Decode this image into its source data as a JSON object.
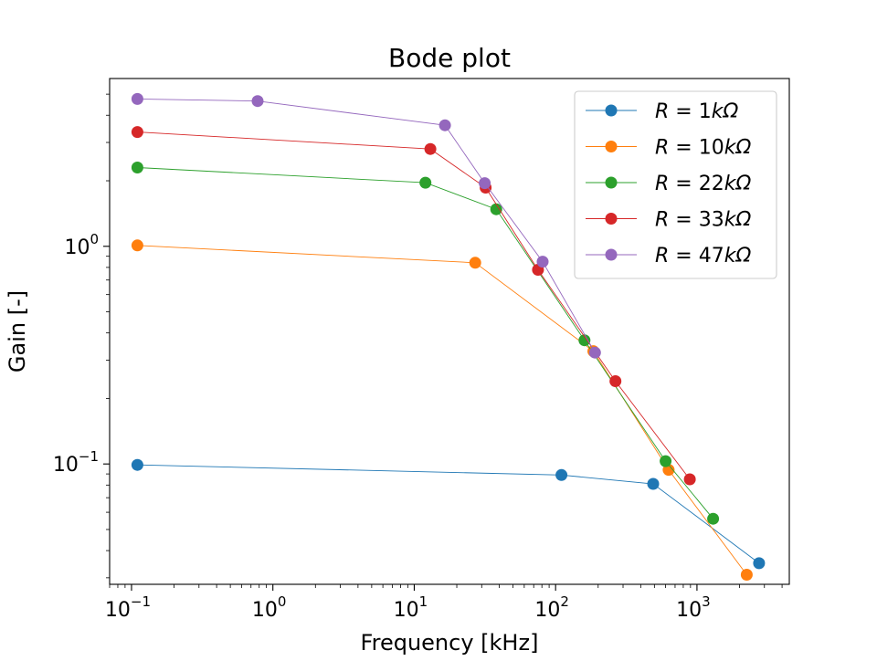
{
  "chart_data": {
    "type": "line",
    "title": "Bode plot",
    "xlabel": "Frequency [kHz]",
    "ylabel": "Gain [-]",
    "xscale": "log",
    "yscale": "log",
    "xlim": [
      0.07,
      4500
    ],
    "ylim": [
      0.028,
      5.9
    ],
    "x_ticks": [
      {
        "value": 0.1,
        "base": "10",
        "exp": "−1"
      },
      {
        "value": 1,
        "base": "10",
        "exp": "0"
      },
      {
        "value": 10,
        "base": "10",
        "exp": "1"
      },
      {
        "value": 100,
        "base": "10",
        "exp": "2"
      },
      {
        "value": 1000,
        "base": "10",
        "exp": "3"
      }
    ],
    "y_ticks": [
      {
        "value": 0.1,
        "base": "10",
        "exp": "−1"
      },
      {
        "value": 1,
        "base": "10",
        "exp": "0"
      }
    ],
    "grid": false,
    "legend_position": "top-right",
    "series": [
      {
        "name": "R = 1kΩ",
        "legend_var": "R",
        "legend_eq": " = 1",
        "legend_unit": "kΩ",
        "color": "#1f77b4",
        "x": [
          0.11,
          110,
          490,
          2750
        ],
        "y": [
          0.099,
          0.089,
          0.081,
          0.035
        ]
      },
      {
        "name": "R = 10kΩ",
        "legend_var": "R",
        "legend_eq": " = 10",
        "legend_unit": "kΩ",
        "color": "#ff7f0e",
        "x": [
          0.11,
          27,
          185,
          630,
          2250
        ],
        "y": [
          1.01,
          0.84,
          0.33,
          0.094,
          0.031
        ]
      },
      {
        "name": "R = 22kΩ",
        "legend_var": "R",
        "legend_eq": " = 22",
        "legend_unit": "kΩ",
        "color": "#2ca02c",
        "x": [
          0.11,
          12,
          38,
          160,
          600,
          1300
        ],
        "y": [
          2.3,
          1.96,
          1.48,
          0.37,
          0.103,
          0.056
        ]
      },
      {
        "name": "R = 33kΩ",
        "legend_var": "R",
        "legend_eq": " = 33",
        "legend_unit": "kΩ",
        "color": "#d62728",
        "x": [
          0.11,
          13,
          32,
          75,
          265,
          890
        ],
        "y": [
          3.35,
          2.8,
          1.86,
          0.78,
          0.24,
          0.085
        ]
      },
      {
        "name": "R = 47kΩ",
        "legend_var": "R",
        "legend_eq": " = 47",
        "legend_unit": "kΩ",
        "color": "#9467bd",
        "x": [
          0.11,
          0.78,
          16.5,
          31.5,
          81,
          190
        ],
        "y": [
          4.75,
          4.65,
          3.6,
          1.95,
          0.85,
          0.325
        ]
      }
    ]
  }
}
